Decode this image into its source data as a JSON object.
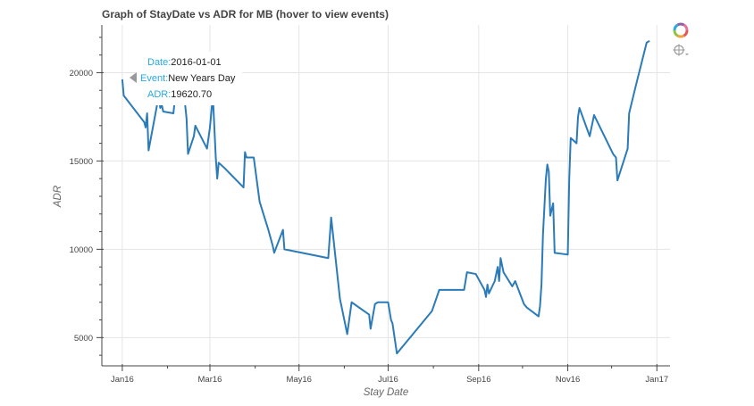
{
  "chart_data": {
    "type": "line",
    "title": "Graph of StayDate vs ADR for MB (hover to view events)",
    "xlabel": "Stay Date",
    "ylabel": "ADR",
    "x_type": "date",
    "xlim": [
      "2015-12-18",
      "2017-01-10"
    ],
    "ylim": [
      3400,
      22700
    ],
    "x_ticks": [
      {
        "date": "2016-01-01",
        "label": "Jan16"
      },
      {
        "date": "2016-03-01",
        "label": "Mar16"
      },
      {
        "date": "2016-05-01",
        "label": "May16"
      },
      {
        "date": "2016-07-01",
        "label": "Jul16"
      },
      {
        "date": "2016-09-01",
        "label": "Sep16"
      },
      {
        "date": "2016-11-01",
        "label": "Nov16"
      },
      {
        "date": "2017-01-01",
        "label": "Jan17"
      }
    ],
    "y_ticks": [
      5000,
      10000,
      15000,
      20000
    ],
    "grid": true,
    "series": [
      {
        "color": "#2b7bb9",
        "x": [
          "2016-01-01",
          "2016-01-02",
          "2016-01-16",
          "2016-01-17",
          "2016-01-18",
          "2016-01-19",
          "2016-01-26",
          "2016-01-27",
          "2016-01-28",
          "2016-01-29",
          "2016-02-05",
          "2016-02-06",
          "2016-02-07",
          "2016-02-08",
          "2016-02-09",
          "2016-02-13",
          "2016-02-14",
          "2016-02-15",
          "2016-02-19",
          "2016-02-20",
          "2016-02-28",
          "2016-03-01",
          "2016-03-03",
          "2016-03-05",
          "2016-03-06",
          "2016-03-07",
          "2016-03-11",
          "2016-03-24",
          "2016-03-25",
          "2016-03-26",
          "2016-03-31",
          "2016-04-04",
          "2016-04-10",
          "2016-04-12",
          "2016-04-13",
          "2016-04-14",
          "2016-04-20",
          "2016-04-21",
          "2016-05-21",
          "2016-05-23",
          "2016-05-29",
          "2016-06-03",
          "2016-06-06",
          "2016-06-18",
          "2016-06-19",
          "2016-06-22",
          "2016-06-24",
          "2016-06-25",
          "2016-07-01",
          "2016-07-03",
          "2016-07-04",
          "2016-07-07",
          "2016-07-31",
          "2016-08-05",
          "2016-08-22",
          "2016-08-24",
          "2016-08-30",
          "2016-09-05",
          "2016-09-06",
          "2016-09-07",
          "2016-09-08",
          "2016-09-12",
          "2016-09-14",
          "2016-09-15",
          "2016-09-16",
          "2016-09-18",
          "2016-09-24",
          "2016-09-26",
          "2016-10-02",
          "2016-10-04",
          "2016-10-12",
          "2016-10-13",
          "2016-10-14",
          "2016-10-15",
          "2016-10-17",
          "2016-10-18",
          "2016-10-19",
          "2016-10-20",
          "2016-10-22",
          "2016-10-23",
          "2016-11-01",
          "2016-11-02",
          "2016-11-03",
          "2016-11-07",
          "2016-11-08",
          "2016-11-09",
          "2016-11-16",
          "2016-11-19",
          "2016-12-02",
          "2016-12-04",
          "2016-12-05",
          "2016-12-12",
          "2016-12-13",
          "2016-12-18",
          "2016-12-25",
          "2016-12-27"
        ],
        "y": [
          19620.7,
          18700,
          17200,
          16900,
          17700,
          15600,
          18700,
          18000,
          18200,
          17800,
          17700,
          18500,
          18800,
          18300,
          18700,
          18200,
          17400,
          15400,
          16400,
          17000,
          15700,
          16900,
          18700,
          15200,
          14000,
          14900,
          14600,
          13500,
          15500,
          15200,
          15200,
          12700,
          11100,
          10500,
          10200,
          9800,
          11100,
          10000,
          9500,
          11800,
          7200,
          5200,
          7000,
          6300,
          5500,
          6900,
          7000,
          7000,
          7000,
          6000,
          5800,
          4100,
          6500,
          7700,
          7700,
          8700,
          8600,
          7700,
          7300,
          8000,
          7500,
          8200,
          9000,
          8200,
          9500,
          8700,
          7900,
          8200,
          6900,
          6700,
          6200,
          6800,
          8000,
          10800,
          14000,
          14800,
          14400,
          11900,
          12600,
          9800,
          9700,
          14000,
          16300,
          16000,
          17500,
          18000,
          16400,
          17600,
          15400,
          15200,
          13900,
          15700,
          17700,
          19400,
          21700,
          21800
        ]
      }
    ]
  },
  "tooltip": {
    "date_key": "Date:",
    "date_val": "2016-01-01",
    "event_key": "Event:",
    "event_val": "New Years Day",
    "adr_key": "ADR:",
    "adr_val": "19620.70"
  },
  "toolbar": {
    "logo_icon": "bokeh-logo-icon",
    "hover_icon": "crosshair-hover-icon"
  }
}
